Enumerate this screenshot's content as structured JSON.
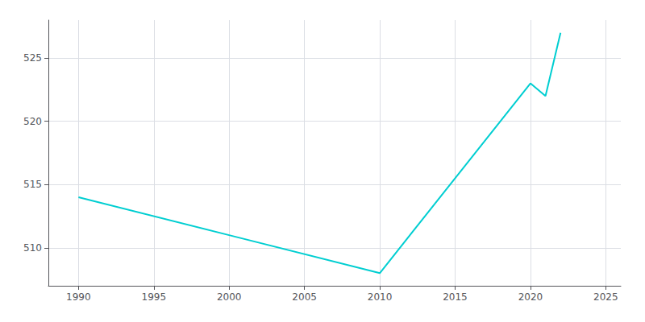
{
  "chart_data": {
    "type": "line",
    "x": [
      1990,
      2000,
      2010,
      2020,
      2021,
      2022
    ],
    "values": [
      514,
      511,
      508,
      523,
      522,
      527
    ],
    "color": "#00CED1",
    "xlim": [
      1988,
      2026
    ],
    "ylim": [
      507,
      528
    ],
    "xticks": [
      1990,
      1995,
      2000,
      2005,
      2010,
      2015,
      2020,
      2025
    ],
    "yticks": [
      510,
      515,
      520,
      525
    ],
    "grid": true
  }
}
